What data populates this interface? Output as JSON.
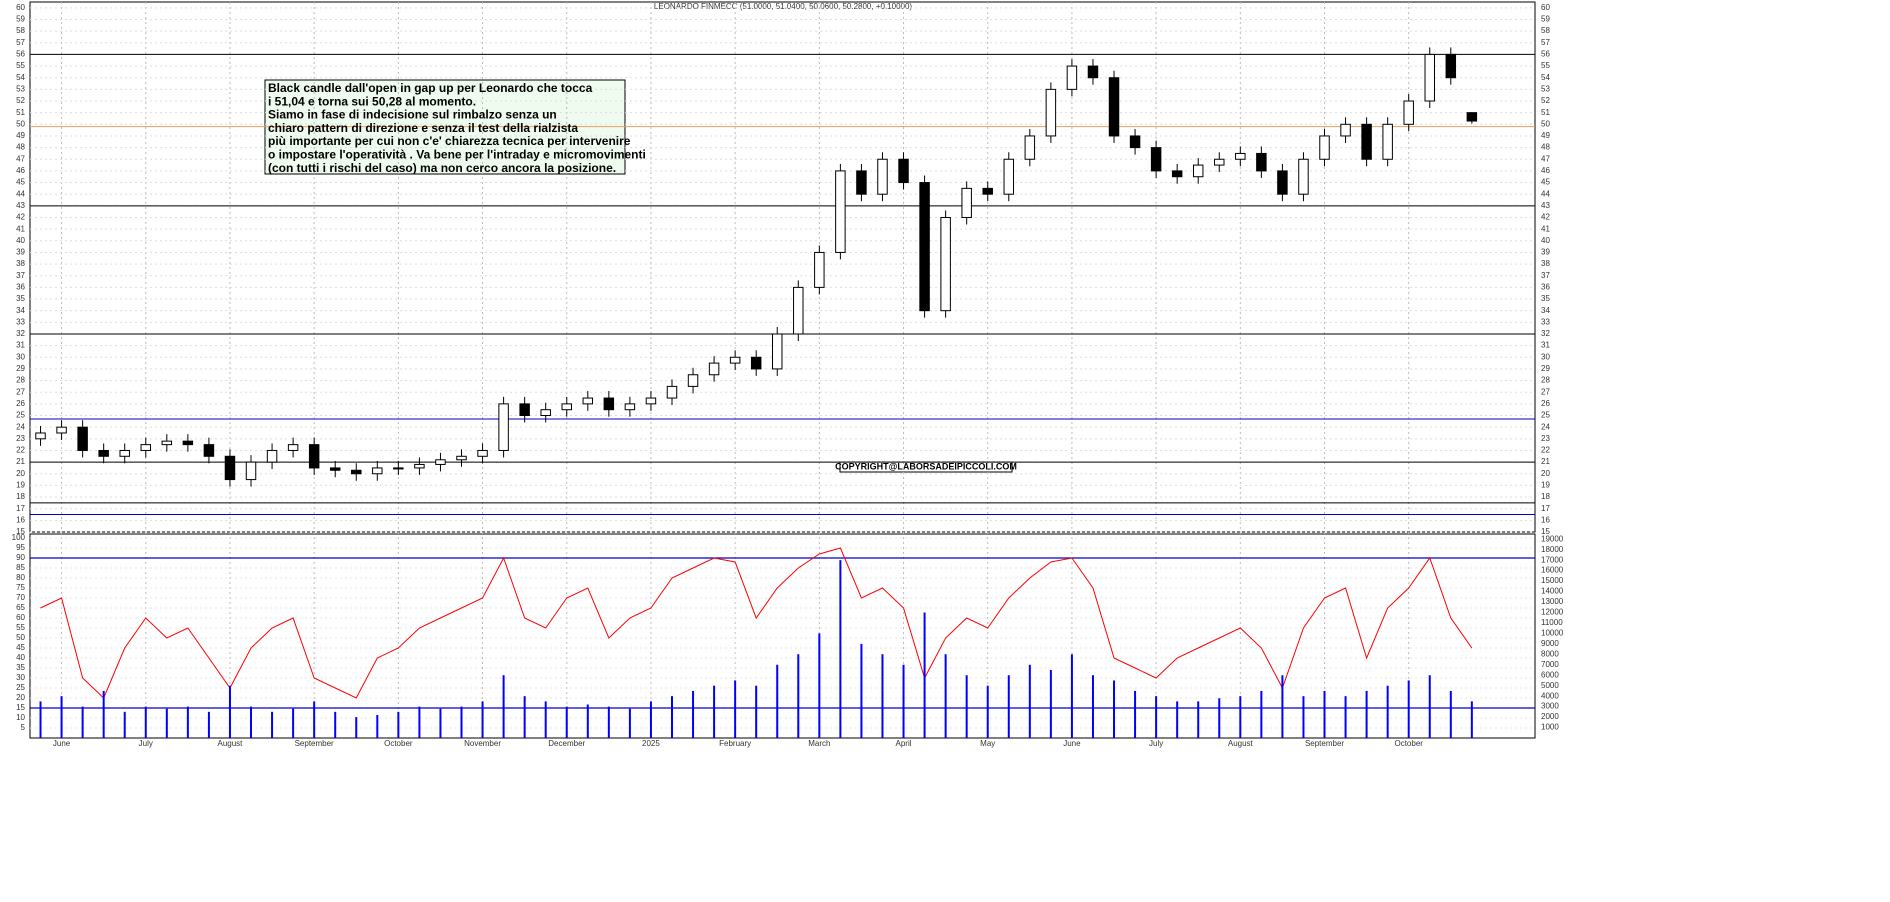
{
  "chart_data": [
    {
      "type": "candlestick",
      "title": "LEONARDO FINMECC (51.0000, 51.0400, 50.0600, 50.2800, +0.10000)",
      "annotation": [
        "Black candle dall'open in gap up per Leonardo che tocca",
        "i 51,04 e torna sui 50,28 al momento.",
        "Siamo in fase di indecisione sul rimbalzo senza un",
        "chiaro pattern di direzione e senza il test della rialzista",
        "più importante per cui non c'e' chiarezza tecnica per intervenire",
        "o impostare l'operatività . Va bene per l'intraday e micromovimenti",
        "(con tutti i rischi del caso) ma non cerco ancora la posizione."
      ],
      "copyright": "COPYRIGHT@LABORSADEIPICCOLI.COM",
      "x": [
        0,
        1,
        2,
        3,
        4,
        5,
        6,
        7,
        8,
        9,
        10,
        11,
        12,
        13,
        14,
        15,
        16,
        17,
        18,
        19,
        20,
        21,
        22,
        23,
        24,
        25,
        26,
        27,
        28,
        29,
        30,
        31,
        32,
        33,
        34,
        35,
        36,
        37,
        38,
        39,
        40,
        41,
        42,
        43,
        44,
        45,
        46,
        47,
        48,
        49,
        50,
        51,
        52,
        53,
        54,
        55,
        56,
        57,
        58,
        59,
        60,
        61,
        62,
        63,
        64,
        65,
        66,
        67,
        68
      ],
      "open": [
        23,
        23.5,
        24,
        22,
        21.5,
        22,
        22.5,
        22.8,
        22.5,
        21.5,
        19.5,
        21,
        22,
        22.5,
        20.5,
        20.3,
        20,
        20.5,
        20.5,
        20.8,
        21.2,
        21.5,
        22,
        26,
        25,
        25.5,
        26,
        26.5,
        25.5,
        26,
        26.5,
        27.5,
        28.5,
        29.5,
        30,
        29,
        32,
        36,
        39,
        46,
        44,
        47,
        45,
        34,
        42,
        44.5,
        44,
        47,
        49,
        53,
        55,
        54,
        49,
        48,
        46,
        45.5,
        46.5,
        47,
        47.5,
        46,
        44,
        47,
        49,
        50,
        47,
        50,
        52,
        56,
        51
      ],
      "high": [
        24.1,
        24.6,
        24.6,
        22.6,
        22.6,
        23.1,
        23.4,
        23.4,
        23.1,
        22.1,
        21.6,
        22.6,
        23.1,
        23.1,
        21.1,
        20.9,
        21.1,
        21.1,
        21.4,
        21.8,
        22.1,
        22.6,
        26.6,
        26.6,
        26.1,
        26.6,
        27.1,
        27.1,
        26.6,
        27.1,
        28.1,
        29.1,
        30.1,
        30.6,
        30.6,
        32.6,
        36.6,
        39.6,
        46.6,
        46.6,
        47.6,
        47.6,
        45.6,
        42.6,
        45.1,
        45.1,
        47.6,
        49.6,
        53.6,
        55.6,
        55.6,
        54.6,
        49.6,
        48.6,
        46.6,
        47.1,
        47.6,
        48.1,
        48.1,
        46.6,
        47.6,
        49.6,
        50.6,
        50.6,
        50.6,
        52.6,
        56.6,
        56.6,
        51.04
      ],
      "low": [
        22.4,
        22.9,
        21.4,
        20.9,
        20.9,
        21.4,
        21.9,
        21.9,
        20.9,
        18.9,
        18.9,
        20.4,
        21.4,
        19.9,
        19.7,
        19.4,
        19.4,
        19.9,
        19.9,
        20.2,
        20.6,
        20.9,
        21.4,
        24.4,
        24.4,
        24.9,
        25.4,
        24.9,
        24.9,
        25.4,
        25.9,
        26.9,
        27.9,
        28.9,
        28.4,
        28.4,
        31.4,
        35.4,
        38.4,
        43.4,
        43.4,
        44.4,
        33.4,
        33.4,
        41.4,
        43.4,
        43.4,
        46.4,
        48.4,
        52.4,
        53.4,
        48.4,
        47.4,
        45.4,
        44.9,
        44.9,
        45.9,
        46.4,
        45.4,
        43.4,
        43.4,
        46.4,
        48.4,
        46.4,
        46.4,
        49.4,
        51.4,
        53.4,
        50.06
      ],
      "close": [
        23.5,
        24,
        22,
        21.5,
        22,
        22.5,
        22.8,
        22.5,
        21.5,
        19.5,
        21,
        22,
        22.5,
        20.5,
        20.3,
        20,
        20.5,
        20.5,
        20.8,
        21.2,
        21.5,
        22,
        26,
        25,
        25.5,
        26,
        26.5,
        25.5,
        26,
        26.5,
        27.5,
        28.5,
        29.5,
        30,
        29,
        32,
        36,
        39,
        46,
        44,
        47,
        45,
        34,
        42,
        44.5,
        44,
        47,
        49,
        53,
        55,
        54,
        49,
        48,
        46,
        45.5,
        46.5,
        47,
        47.5,
        46,
        44,
        47,
        49,
        50,
        47,
        50,
        52,
        56,
        54,
        50.28
      ],
      "hlines": [
        {
          "value": 56,
          "color": "#000000"
        },
        {
          "value": 49.8,
          "color": "#e8a060"
        },
        {
          "value": 43,
          "color": "#000000"
        },
        {
          "value": 32,
          "color": "#000000"
        },
        {
          "value": 24.7,
          "color": "#0000cc"
        },
        {
          "value": 21,
          "color": "#000000"
        },
        {
          "value": 17.5,
          "color": "#000000"
        },
        {
          "value": 16.5,
          "color": "#0000cc"
        }
      ],
      "xlim": [
        -0.5,
        71
      ],
      "xticks": [
        {
          "value": 1,
          "label": "June"
        },
        {
          "value": 5,
          "label": "July"
        },
        {
          "value": 9,
          "label": "August"
        },
        {
          "value": 13,
          "label": "September"
        },
        {
          "value": 17,
          "label": "October"
        },
        {
          "value": 21,
          "label": "November"
        },
        {
          "value": 25,
          "label": "December"
        },
        {
          "value": 29,
          "label": "2025"
        },
        {
          "value": 33,
          "label": "February"
        },
        {
          "value": 37,
          "label": "March"
        },
        {
          "value": 41,
          "label": "April"
        },
        {
          "value": 45,
          "label": "May"
        },
        {
          "value": 49,
          "label": "June"
        },
        {
          "value": 53,
          "label": "July"
        },
        {
          "value": 57,
          "label": "August"
        },
        {
          "value": 61,
          "label": "September"
        },
        {
          "value": 65,
          "label": "October"
        }
      ],
      "ylim": [
        15,
        60.5
      ],
      "yticks": [
        15,
        16,
        17,
        18,
        19,
        20,
        21,
        22,
        23,
        24,
        25,
        26,
        27,
        28,
        29,
        30,
        31,
        32,
        33,
        34,
        35,
        36,
        37,
        38,
        39,
        40,
        41,
        42,
        43,
        44,
        45,
        46,
        47,
        48,
        49,
        50,
        51,
        52,
        53,
        54,
        55,
        56,
        57,
        58,
        59,
        60
      ],
      "grid": true
    },
    {
      "type": "line",
      "series": [
        {
          "name": "oscillator",
          "type": "line",
          "color": "#ff0000",
          "values": [
            65,
            70,
            30,
            20,
            45,
            60,
            50,
            55,
            40,
            25,
            45,
            55,
            60,
            30,
            25,
            20,
            40,
            45,
            55,
            60,
            65,
            70,
            90,
            60,
            55,
            70,
            75,
            50,
            60,
            65,
            80,
            85,
            90,
            88,
            60,
            75,
            85,
            92,
            95,
            70,
            75,
            65,
            30,
            50,
            60,
            55,
            70,
            80,
            88,
            90,
            75,
            40,
            35,
            30,
            40,
            45,
            50,
            55,
            45,
            25,
            55,
            70,
            75,
            40,
            65,
            75,
            90,
            60,
            45
          ]
        },
        {
          "name": "volume",
          "type": "bar",
          "axis": "y2",
          "color": "#0000ff",
          "values": [
            3500,
            4000,
            3000,
            4500,
            2500,
            3000,
            2800,
            3000,
            2500,
            5000,
            3000,
            2500,
            2800,
            3500,
            2500,
            2000,
            2200,
            2500,
            3000,
            2800,
            3000,
            3500,
            6000,
            4000,
            3500,
            3000,
            3200,
            3000,
            2800,
            3500,
            4000,
            4500,
            5000,
            5500,
            5000,
            7000,
            8000,
            10000,
            17000,
            9000,
            8000,
            7000,
            12000,
            8000,
            6000,
            5000,
            6000,
            7000,
            6500,
            8000,
            6000,
            5500,
            4500,
            4000,
            3500,
            3500,
            3800,
            4000,
            4500,
            6000,
            4000,
            4500,
            4000,
            4500,
            5000,
            5500,
            6000,
            4500,
            3500
          ]
        }
      ],
      "levels": [
        90,
        15
      ],
      "ylim": [
        0,
        102
      ],
      "yticks": [
        5,
        10,
        15,
        20,
        25,
        30,
        35,
        40,
        45,
        50,
        55,
        60,
        65,
        70,
        75,
        80,
        85,
        90,
        95,
        100
      ],
      "y2lim": [
        0,
        19500
      ],
      "y2ticks": [
        1000,
        2000,
        3000,
        4000,
        5000,
        6000,
        7000,
        8000,
        9000,
        10000,
        11000,
        12000,
        13000,
        14000,
        15000,
        16000,
        17000,
        18000,
        19000
      ]
    }
  ]
}
